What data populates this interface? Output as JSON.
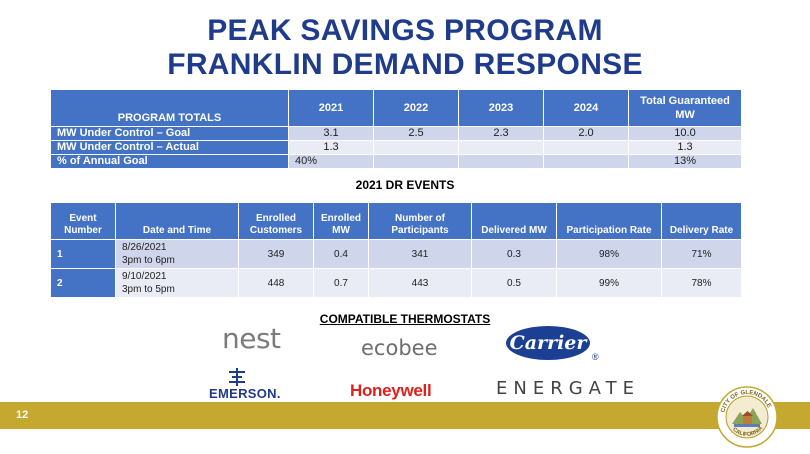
{
  "title_line1": "PEAK SAVINGS PROGRAM",
  "title_line2": "FRANKLIN DEMAND RESPONSE",
  "totals": {
    "header_label": "PROGRAM TOTALS",
    "years": [
      "2021",
      "2022",
      "2023",
      "2024"
    ],
    "total_label": "Total Guaranteed MW",
    "rows": [
      {
        "label": "MW Under Control – Goal",
        "values": [
          "3.1",
          "2.5",
          "2.3",
          "2.0"
        ],
        "total": "10.0"
      },
      {
        "label": "MW Under Control – Actual",
        "values": [
          "1.3",
          "",
          "",
          ""
        ],
        "total": "1.3"
      },
      {
        "label": "% of Annual Goal",
        "values": [
          "40%",
          "",
          "",
          ""
        ],
        "total": "13%"
      }
    ]
  },
  "events": {
    "title": "2021 DR EVENTS",
    "headers": {
      "event_number": "Event Number",
      "date_time": "Date and Time",
      "enrolled_customers": "Enrolled Customers",
      "enrolled_mw": "Enrolled MW",
      "participants": "Number of Participants",
      "delivered_mw": "Delivered MW",
      "participation_rate": "Participation Rate",
      "delivery_rate": "Delivery Rate"
    },
    "rows": [
      {
        "num": "1",
        "date": "8/26/2021",
        "time": "3pm to 6pm",
        "customers": "349",
        "enrolled_mw": "0.4",
        "participants": "341",
        "delivered_mw": "0.3",
        "participation": "98%",
        "delivery": "71%"
      },
      {
        "num": "2",
        "date": "9/10/2021",
        "time": "3pm to 5pm",
        "customers": "448",
        "enrolled_mw": "0.7",
        "participants": "443",
        "delivered_mw": "0.5",
        "participation": "99%",
        "delivery": "78%"
      }
    ]
  },
  "thermostats": {
    "title": "COMPATIBLE THERMOSTATS",
    "brands": {
      "nest": "nest",
      "ecobee": "ecobee",
      "carrier": "Carrier",
      "emerson": "EMERSON.",
      "honeywell": "Honeywell",
      "energate": "ENERGATE"
    }
  },
  "page_number": "12",
  "seal_text": "CITY OF GLENDALE CALIFORNIA",
  "colors": {
    "title": "#1f3b8c",
    "table_header": "#4472c4",
    "footer": "#c4a830"
  }
}
